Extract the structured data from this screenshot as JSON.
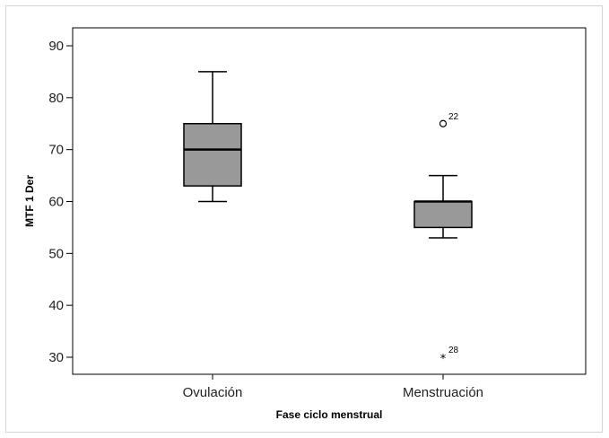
{
  "chart_data": {
    "type": "boxplot",
    "title": "",
    "xlabel": "Fase ciclo menstrual",
    "ylabel": "MTF 1 Der",
    "ylim": [
      26,
      95
    ],
    "yticks": [
      30,
      40,
      50,
      60,
      70,
      80,
      90
    ],
    "grid": false,
    "box_color": "#999999",
    "categories": [
      "Ovulación",
      "Menstruación"
    ],
    "boxes": [
      {
        "category": "Ovulación",
        "whisker_low": 60,
        "q1": 63,
        "median": 70,
        "q3": 75,
        "whisker_high": 85,
        "outliers": []
      },
      {
        "category": "Menstruación",
        "whisker_low": 53,
        "q1": 55,
        "median": 60,
        "q3": 60,
        "whisker_high": 65,
        "outliers": [
          {
            "value": 75,
            "label": "22",
            "marker": "circle"
          },
          {
            "value": 30,
            "label": "28",
            "marker": "star"
          }
        ]
      }
    ]
  }
}
